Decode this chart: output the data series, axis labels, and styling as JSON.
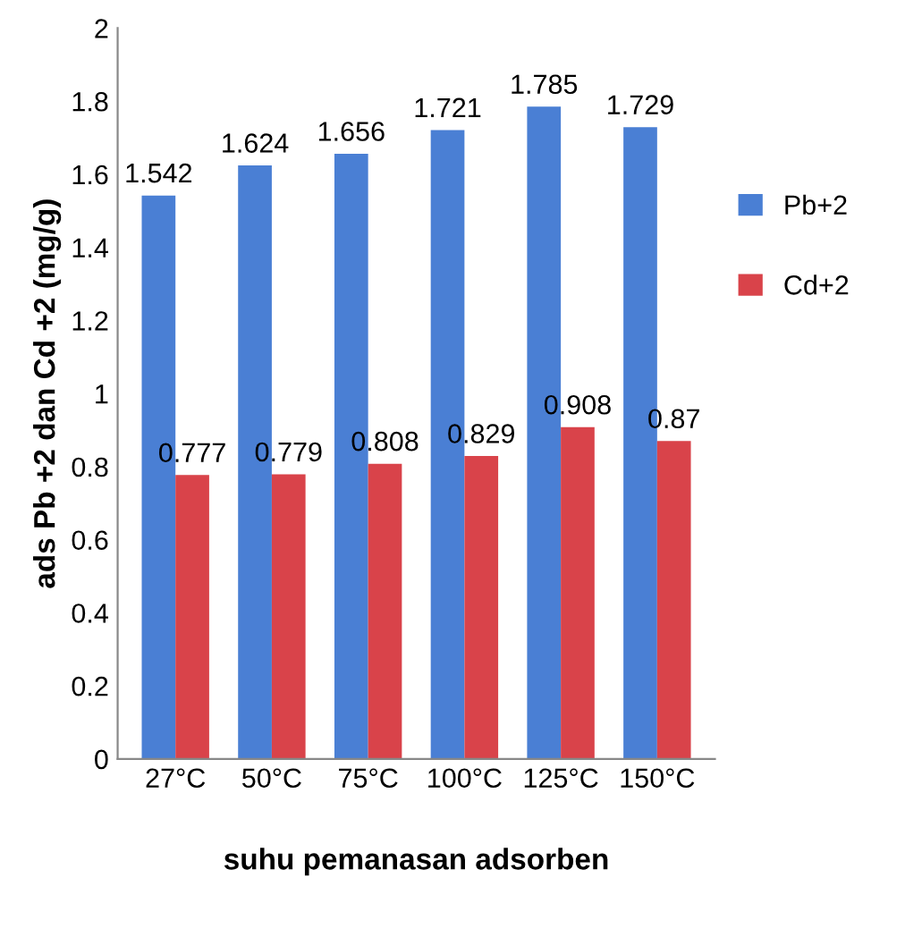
{
  "chart_data": {
    "type": "bar",
    "categories": [
      "27°C",
      "50°C",
      "75°C",
      "100°C",
      "125°C",
      "150°C"
    ],
    "series": [
      {
        "name": "Pb+2",
        "color": "#4a7fd4",
        "values": [
          1.542,
          1.624,
          1.656,
          1.721,
          1.785,
          1.729
        ]
      },
      {
        "name": "Cd+2",
        "color": "#d9434a",
        "values": [
          0.777,
          0.779,
          0.808,
          0.829,
          0.908,
          0.87
        ]
      }
    ],
    "xlabel": "suhu pemanasan adsorben",
    "ylabel": "ads Pb +2 dan Cd +2 (mg/g)",
    "ylim": [
      0,
      2
    ],
    "yticks": [
      0,
      0.2,
      0.4,
      0.6,
      0.8,
      1,
      1.2,
      1.4,
      1.6,
      1.8,
      2
    ],
    "data_labels": true,
    "grid": false,
    "legend": "right"
  }
}
